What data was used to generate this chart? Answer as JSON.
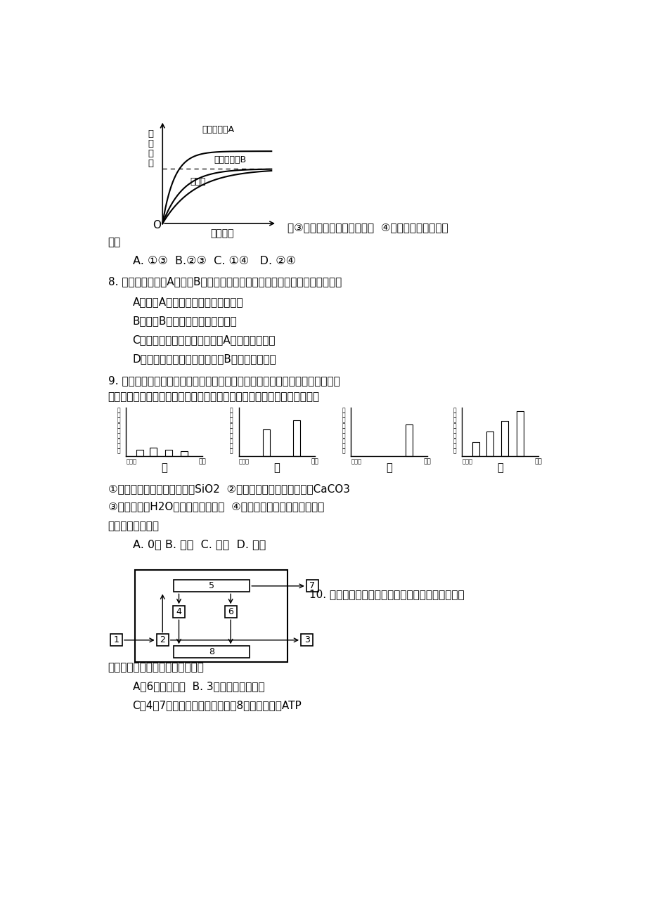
{
  "bg_color": "#ffffff",
  "page_width": 9.2,
  "page_height": 13.02,
  "curve_xlabel": "底物浓度",
  "curve_ylabel_lines": [
    "反",
    "应",
    "速",
    "率"
  ],
  "curve_label_A": "加酶和物质A",
  "curve_label_B": "加酶和物质B",
  "curve_label_only": "只加酶",
  "curve_origin": "O",
  "text_before_line1": "。③自由水与结合水比例增大  ④自由水与结合水比例",
  "text_line1": "减小",
  "choice_line1": "A. ①③  B.②③  C. ①④   D. ②④",
  "q8_text": "8. 右图是研究物质A和物质B对某种酶活性影响的变化曲线，下列叙述正确的是",
  "q8_A": "A．物质A能提高该化学反应的活化能",
  "q8_B": "B．物质B能提高该种酶的催化活性",
  "q8_C": "C．减小底物浓度可以消除物质A对该种酶的影响",
  "q8_D": "D．增大底物浓度可以消除物质B对该种酶的影响",
  "q9_text1": "9. 某生物兴趣小组完成对新鲜菠菜叶进行叶绿体中色素的提取和分离实验时，由",
  "q9_text2": "于各组操作不同，出现了如右图四种不同的层析结果。该兴趣小组分析如下",
  "q9_note1": "①甲可能是因为研磨时未加入SiO2  ②乙可能是因为研磨时未加入CaCO3",
  "q9_note2": "③丙可能误用H2O做提取液和层析液  ④丁是正确操作得到的理想结果",
  "q9_note3": "上述分析正确的有",
  "q9_choices": "A. 0项 B. 一项  C. 两项  D. 三项",
  "q10_text1": "10. 下图为某同学构建的在晴朗白天植物进行有氧呼",
  "q10_text2": "吸过程图。下列有关叙述正确的是",
  "q10_A": "A．6来自叶绿体  B. 3全部释放到大气中",
  "q10_B": "C．4和7属于同一种物质，产生的8大多用于合成ATP"
}
